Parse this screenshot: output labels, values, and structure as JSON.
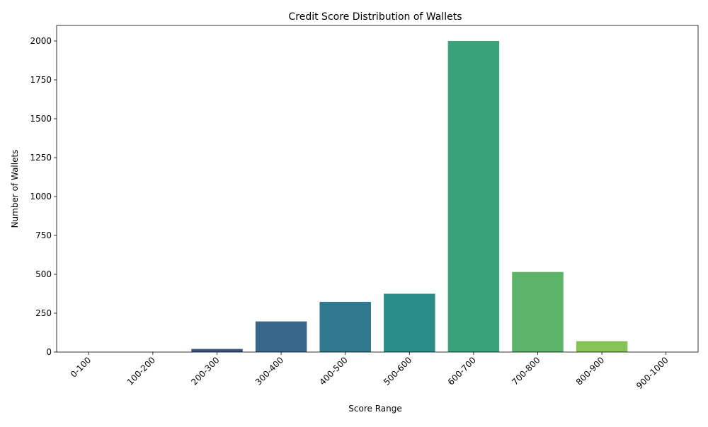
{
  "chart_data": {
    "type": "bar",
    "title": "Credit Score Distribution of Wallets",
    "xlabel": "Score Range",
    "ylabel": "Number of Wallets",
    "categories": [
      "0-100",
      "100-200",
      "200-300",
      "300-400",
      "400-500",
      "500-600",
      "600-700",
      "700-800",
      "800-900",
      "900-1000"
    ],
    "values": [
      0,
      0,
      20,
      197,
      323,
      375,
      2000,
      515,
      70,
      0
    ],
    "colors": [
      "#482576",
      "#443a83",
      "#3b5289",
      "#39668b",
      "#30788d",
      "#2b8c89",
      "#3ba27b",
      "#5cb46b",
      "#84c454",
      "#b5d83c"
    ],
    "ylim": [
      0,
      2100
    ],
    "yticks": [
      0,
      250,
      500,
      750,
      1000,
      1250,
      1500,
      1750,
      2000
    ],
    "grid": false,
    "legend": "none"
  }
}
